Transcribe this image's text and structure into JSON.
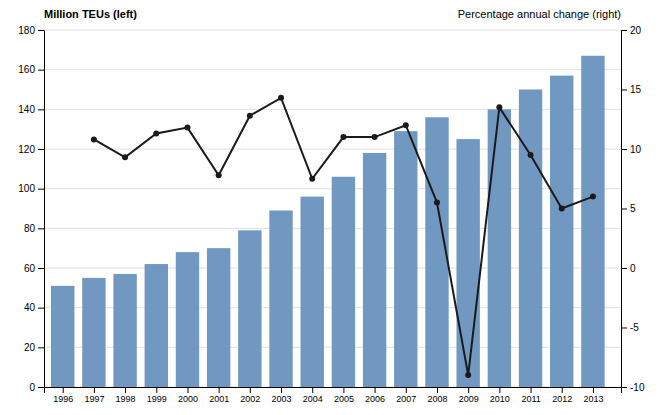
{
  "chart_data": {
    "type": "bar",
    "x": [
      1996,
      1997,
      1998,
      1999,
      2000,
      2001,
      2002,
      2003,
      2004,
      2005,
      2006,
      2007,
      2008,
      2009,
      2010,
      2011,
      2012,
      2013
    ],
    "xlim": [
      1995.4,
      2013.9
    ],
    "xticks": [
      1996,
      1997,
      1998,
      1999,
      2000,
      2001,
      2002,
      2003,
      2004,
      2005,
      2006,
      2007,
      2008,
      2009,
      2010,
      2011,
      2012,
      2013
    ],
    "y_label": "Million TEUs (left)",
    "y2_label": "Percentage annual change (right)",
    "ylim": [
      0,
      180
    ],
    "yticks": [
      0,
      20,
      40,
      60,
      80,
      100,
      120,
      140,
      160,
      180
    ],
    "y2lim": [
      -10,
      20
    ],
    "y2ticks": [
      -10,
      -5,
      0,
      5,
      10,
      15,
      20
    ],
    "grid": true,
    "series": [
      {
        "type": "bar",
        "color": "#7098c0",
        "values": [
          51,
          55,
          57,
          62,
          68,
          70,
          79,
          89,
          96,
          106,
          118,
          129,
          136,
          125,
          140,
          150,
          157,
          167
        ]
      },
      {
        "type": "line",
        "axis": "y2",
        "color": "#1a1a1a",
        "marker": "circle",
        "values": [
          null,
          10.8,
          9.3,
          11.3,
          11.8,
          7.8,
          12.8,
          14.3,
          7.5,
          11.0,
          11.0,
          12.0,
          5.5,
          -9.0,
          13.5,
          9.5,
          5.0,
          6.0
        ]
      }
    ]
  }
}
